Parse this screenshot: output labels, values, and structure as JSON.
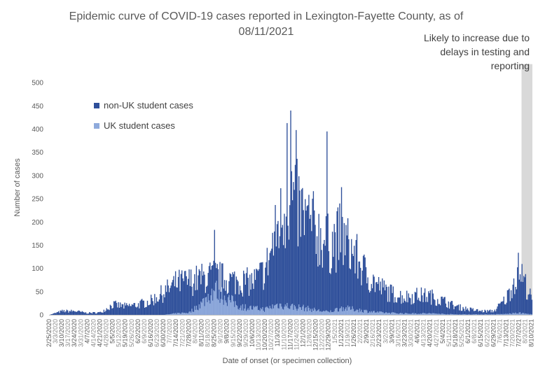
{
  "chart_data": {
    "type": "bar",
    "stacked": true,
    "title_line1": "Epidemic curve of COVID-19 cases reported in Lexington-Fayette County, as of",
    "title_line2": "08/11/2021",
    "xlabel": "Date of onset (or specimen collection)",
    "ylabel": "Number of cases",
    "ylim": [
      0,
      550
    ],
    "yticks": [
      0,
      50,
      100,
      150,
      200,
      250,
      300,
      350,
      400,
      450,
      500
    ],
    "x_start": "2/25/2020",
    "x_end": "8/10/2021",
    "x_tick_labels": [
      "2/25/2020",
      "3/10/2020",
      "3/24/2020",
      "4/7/2020",
      "4/21/2020",
      "5/5/2020",
      "5/19/2020",
      "6/2/2020",
      "6/16/2020",
      "6/30/2020",
      "7/14/2020",
      "7/28/2020",
      "8/11/2020",
      "8/25/2020",
      "9/8/2020",
      "9/22/2020",
      "10/6/2020",
      "10/20/2020",
      "11/3/2020",
      "11/17/2020",
      "12/1/2020",
      "12/15/2020",
      "12/29/2020",
      "1/12/2021",
      "1/26/2021",
      "2/9/2021",
      "2/23/2021",
      "3/9/2021",
      "3/23/2021",
      "4/6/2021",
      "4/20/2021",
      "5/4/2021",
      "5/18/2021",
      "6/1/2021",
      "6/15/2021",
      "6/29/2021",
      "7/13/2021",
      "7/27/2021",
      "8/10/2021"
    ],
    "x_tick_labels_secondary": [
      "3/3/2020",
      "3/17/2020",
      "3/31/2020",
      "4/14/2020",
      "4/28/2020",
      "5/12/2020",
      "5/26/2020",
      "6/9/2020",
      "6/23/2020",
      "7/7/2020",
      "7/21/2020",
      "8/4/2020",
      "8/18/2020",
      "9/1/2020",
      "9/15/2020",
      "9/29/2020",
      "10/13/2020",
      "10/27/2020",
      "11/10/2020",
      "11/24/2020",
      "12/8/2020",
      "12/22/2020",
      "1/5/2021",
      "1/19/2021",
      "2/2/2021",
      "2/16/2021",
      "3/2/2021",
      "3/16/2021",
      "3/30/2021",
      "4/13/2021",
      "4/27/2021",
      "5/11/2021",
      "5/25/2021",
      "6/8/2021",
      "6/22/2021",
      "7/6/2021",
      "7/20/2021",
      "8/3/2021"
    ],
    "series": [
      {
        "name": "non-UK student cases",
        "color": "#2e4f9a"
      },
      {
        "name": "UK student cases",
        "color": "#8faadc"
      }
    ],
    "weekly_total_estimates": {
      "dates": [
        "2/25/2020",
        "3/10/2020",
        "3/24/2020",
        "4/7/2020",
        "4/21/2020",
        "5/5/2020",
        "5/19/2020",
        "6/2/2020",
        "6/16/2020",
        "6/30/2020",
        "7/14/2020",
        "7/28/2020",
        "8/11/2020",
        "8/25/2020",
        "9/8/2020",
        "9/22/2020",
        "10/6/2020",
        "10/20/2020",
        "11/3/2020",
        "11/17/2020",
        "12/1/2020",
        "12/15/2020",
        "12/29/2020",
        "1/12/2021",
        "1/26/2021",
        "2/9/2021",
        "2/23/2021",
        "3/9/2021",
        "3/23/2021",
        "4/6/2021",
        "4/20/2021",
        "5/4/2021",
        "5/18/2021",
        "6/1/2021",
        "6/15/2021",
        "6/29/2021",
        "7/13/2021",
        "7/27/2021",
        "8/10/2021"
      ],
      "total": [
        0,
        8,
        8,
        4,
        5,
        22,
        18,
        22,
        30,
        48,
        68,
        72,
        78,
        85,
        75,
        72,
        70,
        95,
        190,
        255,
        210,
        180,
        150,
        170,
        130,
        85,
        60,
        45,
        38,
        42,
        40,
        30,
        18,
        12,
        8,
        8,
        35,
        100,
        30
      ],
      "uk": [
        0,
        0,
        0,
        0,
        0,
        0,
        0,
        0,
        0,
        0,
        3,
        5,
        25,
        55,
        35,
        18,
        14,
        12,
        22,
        18,
        15,
        10,
        6,
        15,
        12,
        8,
        5,
        4,
        3,
        3,
        3,
        2,
        1,
        1,
        1,
        1,
        2,
        4,
        1
      ]
    },
    "spikes": [
      {
        "date": "8/25/2020",
        "value": 183
      },
      {
        "date": "11/13/2020",
        "value": 413
      },
      {
        "date": "11/17/2020",
        "value": 440
      },
      {
        "date": "11/23/2020",
        "value": 398
      },
      {
        "date": "12/27/2020",
        "value": 395
      },
      {
        "date": "1/12/2021",
        "value": 275
      }
    ],
    "shaded_region": {
      "start": "7/30/2021",
      "end": "8/10/2021",
      "color": "#d9d9d9"
    },
    "annotation": [
      "Likely to increase due to",
      "delays in testing and",
      "reporting"
    ],
    "legend_position": "top-left",
    "grid": false
  }
}
